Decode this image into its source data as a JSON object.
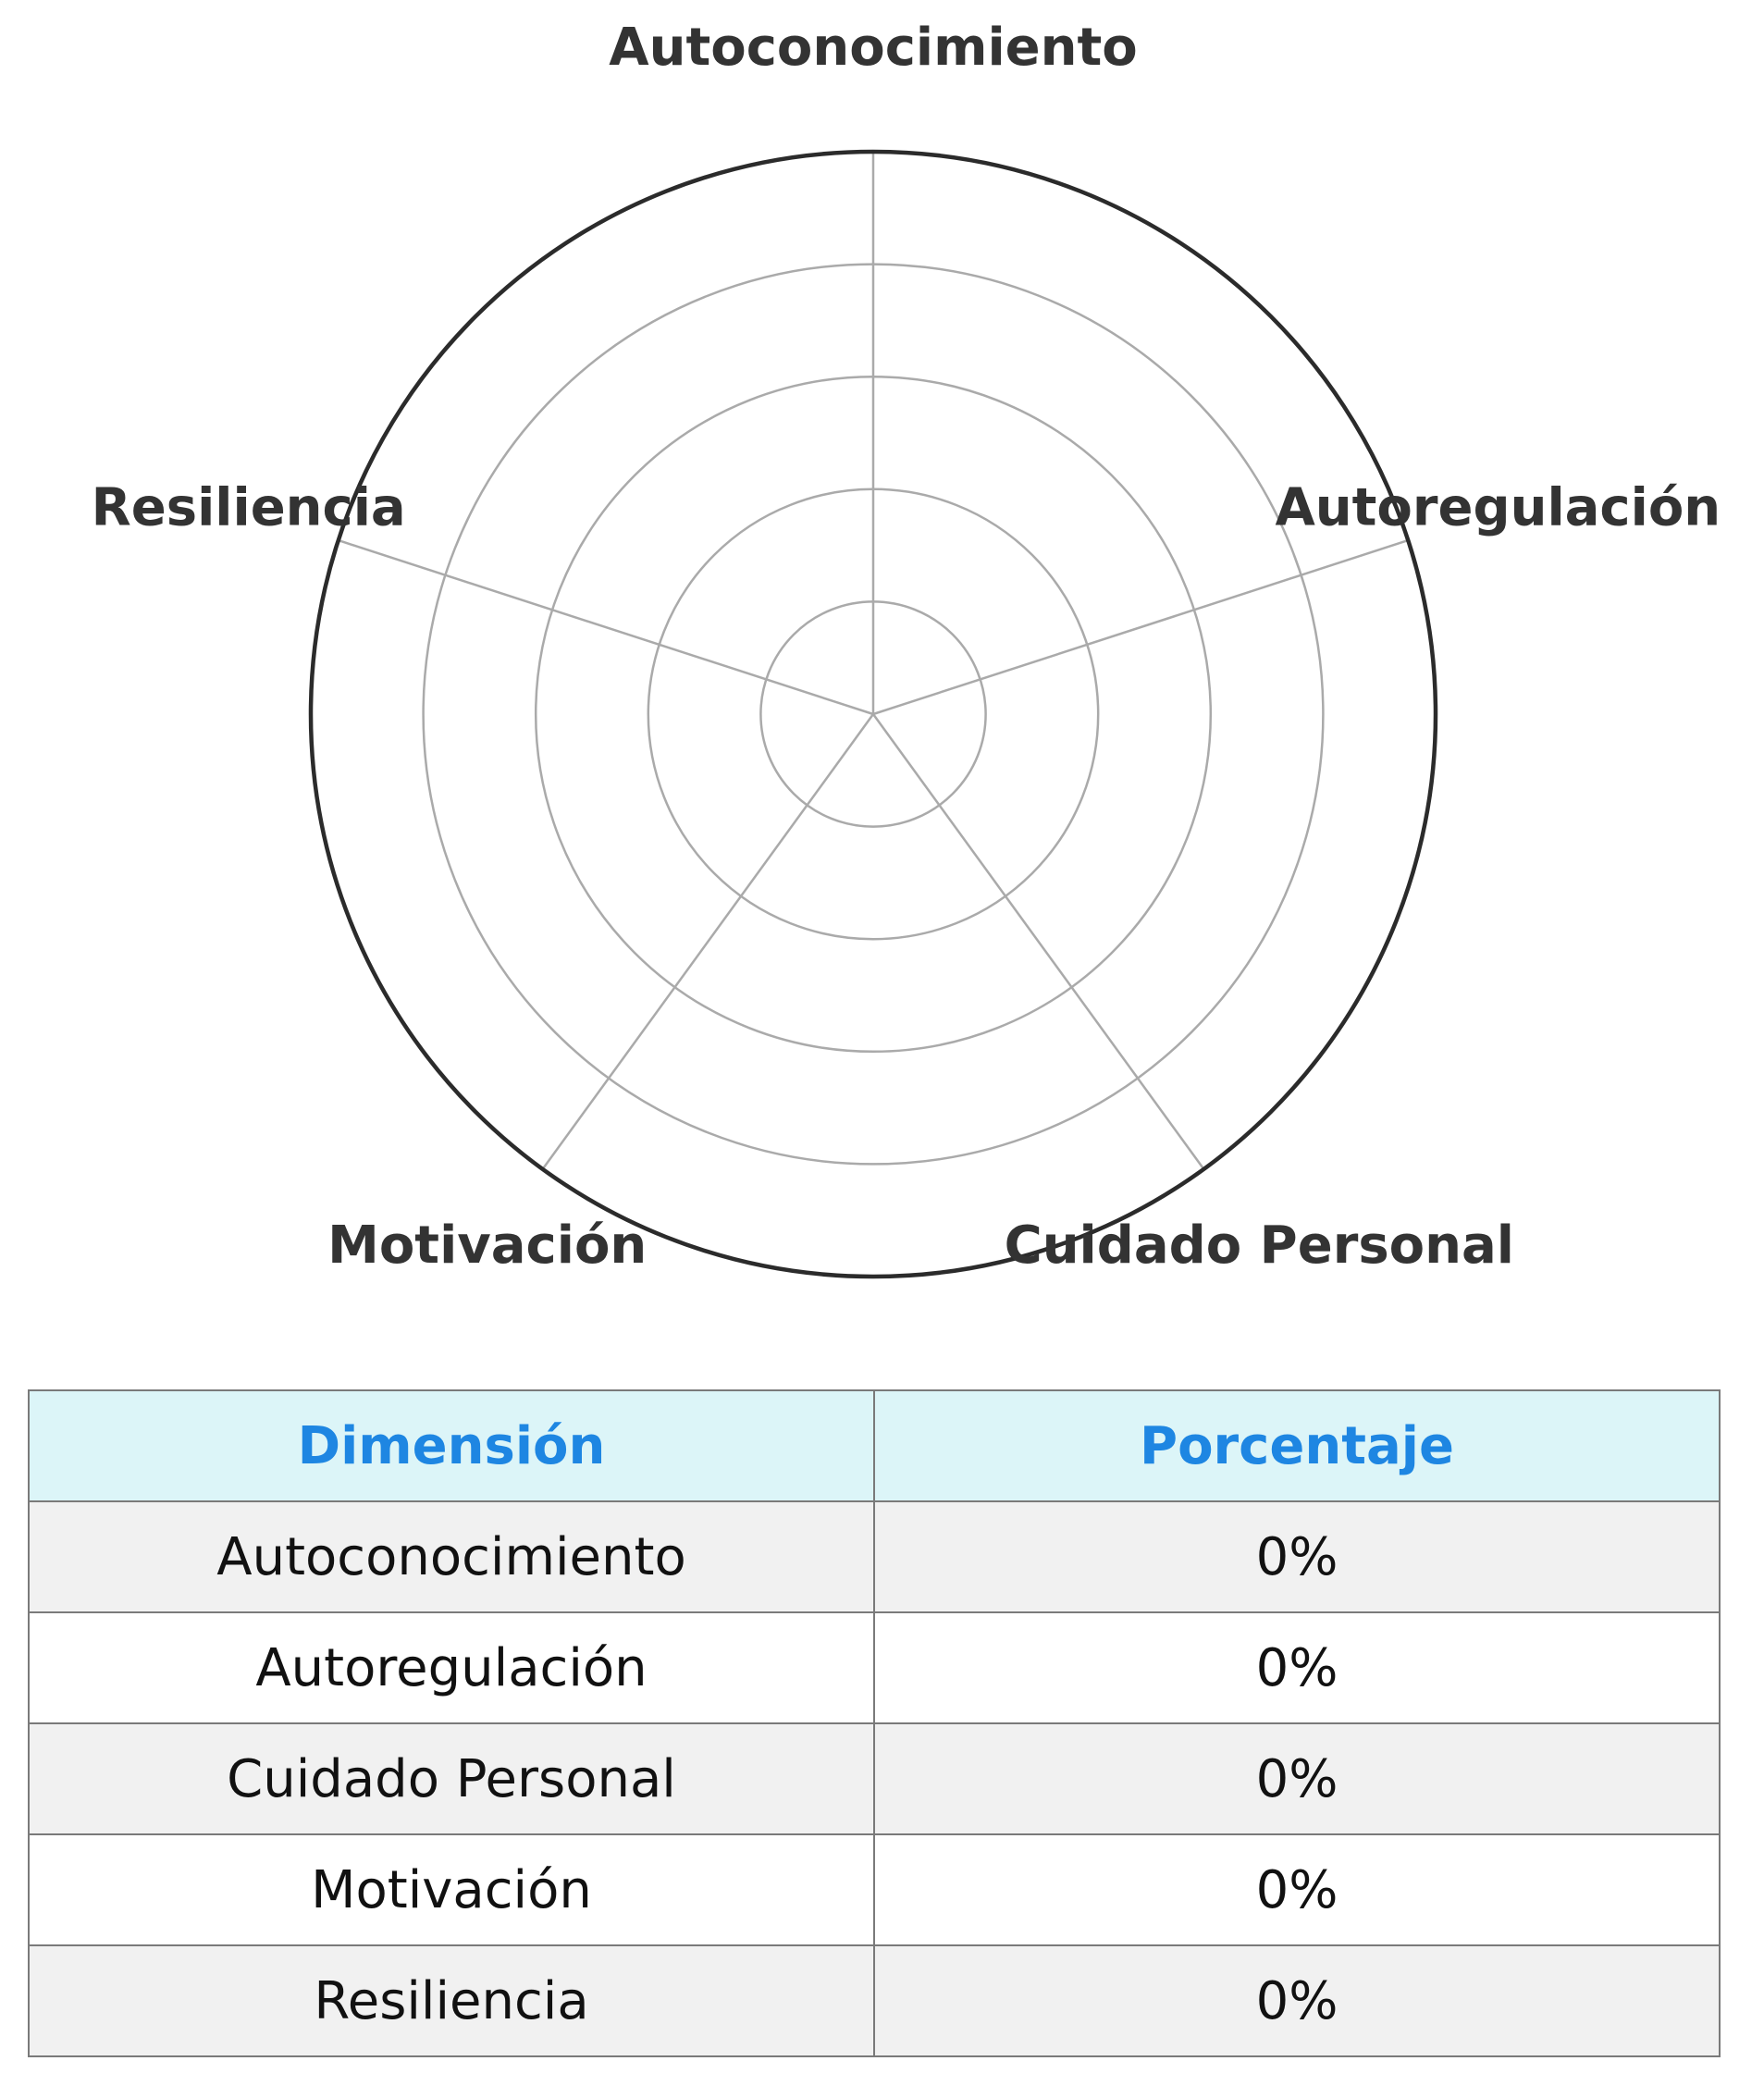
{
  "chart_data": {
    "type": "radar",
    "axes": [
      "Autoconocimiento",
      "Autoregulación",
      "Cuidado Personal",
      "Motivación",
      "Resiliencia"
    ],
    "values": [
      0,
      0,
      0,
      0,
      0
    ],
    "rmax": 100,
    "rings": 5,
    "grid": true,
    "colors": {
      "grid": "#aaaaaa",
      "outer": "#2b2b2b",
      "label": "#333333"
    }
  },
  "table": {
    "headers": [
      "Dimensión",
      "Porcentaje"
    ],
    "rows": [
      [
        "Autoconocimiento",
        "0%"
      ],
      [
        "Autoregulación",
        "0%"
      ],
      [
        "Cuidado Personal",
        "0%"
      ],
      [
        "Motivación",
        "0%"
      ],
      [
        "Resiliencia",
        "0%"
      ]
    ],
    "colors": {
      "header_bg": "#dcf5f8",
      "header_text": "#1e86e2",
      "row_alt_bg": "#f1f1f1",
      "border": "#7a7a7a"
    }
  }
}
